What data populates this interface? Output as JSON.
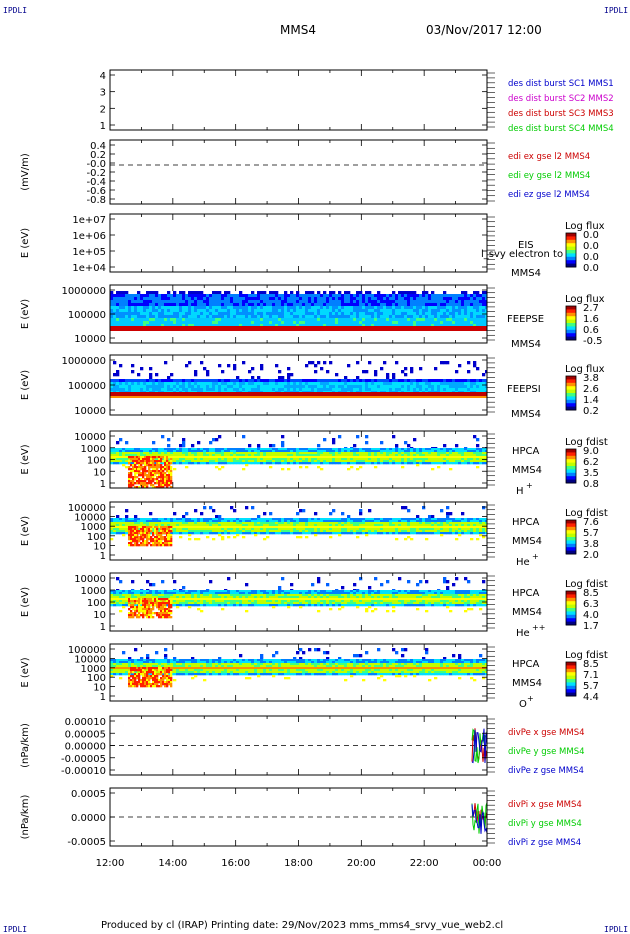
{
  "header": {
    "corner_left_top": "IPDLI",
    "corner_right_top": "IPDLI",
    "corner_left_bottom": "IPDLI",
    "corner_right_bottom": "IPDLI",
    "spacecraft": "MMS4",
    "datetime": "03/Nov/2017 12:00"
  },
  "footer": {
    "text": "Produced by cl (IRAP)   Printing date: 29/Nov/2023   mms_mms4_srvy_vue_web2.cl"
  },
  "colors": {
    "blue": "#0000cc",
    "magenta": "#cc00cc",
    "red": "#cc0000",
    "green": "#00cc00",
    "darkred": "#b00000"
  },
  "chart_data": [
    {
      "type": "line",
      "id": "des-dist",
      "ylabel": "",
      "yticks": [
        "4",
        "3",
        "2",
        "1"
      ],
      "ylim": [
        0.5,
        4.5
      ],
      "legend": [
        {
          "label": "des dist burst SC1 MMS1",
          "color": "#0000cc"
        },
        {
          "label": "des dist burst SC2 MMS2",
          "color": "#cc00cc"
        },
        {
          "label": "des dist burst SC3 MMS3",
          "color": "#cc0000"
        },
        {
          "label": "des dist burst SC4 MMS4",
          "color": "#00cc00"
        }
      ],
      "series": []
    },
    {
      "type": "line",
      "id": "edi",
      "ylabel": "(mV/m)",
      "yticks": [
        "0.4",
        "0.2",
        "-0.0",
        "-0.2",
        "-0.4",
        "-0.6",
        "-0.8"
      ],
      "ylim": [
        -0.9,
        0.5
      ],
      "zero_line": true,
      "legend": [
        {
          "label": "edi ex gse l2 MMS4",
          "color": "#cc0000"
        },
        {
          "label": "edi ey gse l2 MMS4",
          "color": "#00cc00"
        },
        {
          "label": "edi ez gse l2 MMS4",
          "color": "#0000cc"
        }
      ],
      "series": []
    },
    {
      "type": "heatmap",
      "id": "eis",
      "ylabel": "E (eV)",
      "yticks": [
        "1e+07",
        "1e+06",
        "1e+05",
        "1e+04"
      ],
      "yscale": "log",
      "instrument": "EIS",
      "spacecraft": "MMS4",
      "overlay_label": "l_svy electron to",
      "colorbar_title": "Log flux",
      "colorbar_ticks": [
        "0.0",
        "0.0",
        "0.0",
        "0.0"
      ]
    },
    {
      "type": "heatmap",
      "id": "feepse",
      "ylabel": "E (eV)",
      "yticks": [
        "1000000",
        "100000",
        "10000"
      ],
      "yscale": "log",
      "instrument": "FEEPSE",
      "spacecraft": "MMS4",
      "colorbar_title": "Log flux",
      "colorbar_ticks": [
        "2.7",
        "1.6",
        "0.6",
        "-0.5"
      ]
    },
    {
      "type": "heatmap",
      "id": "feepsi",
      "ylabel": "E (eV)",
      "yticks": [
        "1000000",
        "100000",
        "10000"
      ],
      "yscale": "log",
      "instrument": "FEEPSI",
      "spacecraft": "MMS4",
      "colorbar_title": "Log flux",
      "colorbar_ticks": [
        "3.8",
        "2.6",
        "1.4",
        "0.2"
      ]
    },
    {
      "type": "heatmap",
      "id": "hpca-h",
      "ylabel": "E (eV)",
      "yticks": [
        "10000",
        "1000",
        "100",
        "10",
        "1"
      ],
      "yscale": "log",
      "instrument": "HPCA",
      "spacecraft": "MMS4",
      "species": "H",
      "species_sup": "+",
      "colorbar_title": "Log fdist",
      "colorbar_ticks": [
        "9.0",
        "6.2",
        "3.5",
        "0.8"
      ]
    },
    {
      "type": "heatmap",
      "id": "hpca-he",
      "ylabel": "E (eV)",
      "yticks": [
        "100000",
        "10000",
        "1000",
        "100",
        "10",
        "1"
      ],
      "yscale": "log",
      "instrument": "HPCA",
      "spacecraft": "MMS4",
      "species": "He",
      "species_sup": "+",
      "colorbar_title": "Log fdist",
      "colorbar_ticks": [
        "7.6",
        "5.7",
        "3.8",
        "2.0"
      ]
    },
    {
      "type": "heatmap",
      "id": "hpca-hepp",
      "ylabel": "E (eV)",
      "yticks": [
        "10000",
        "1000",
        "100",
        "10",
        "1"
      ],
      "yscale": "log",
      "instrument": "HPCA",
      "spacecraft": "MMS4",
      "species": "He",
      "species_sup": "++",
      "colorbar_title": "Log fdist",
      "colorbar_ticks": [
        "8.5",
        "6.3",
        "4.0",
        "1.7"
      ]
    },
    {
      "type": "heatmap",
      "id": "hpca-o",
      "ylabel": "E (eV)",
      "yticks": [
        "100000",
        "10000",
        "1000",
        "100",
        "10",
        "1"
      ],
      "yscale": "log",
      "instrument": "HPCA",
      "spacecraft": "MMS4",
      "species": "O",
      "species_sup": "+",
      "colorbar_title": "Log fdist",
      "colorbar_ticks": [
        "8.5",
        "7.1",
        "5.7",
        "4.4"
      ]
    },
    {
      "type": "line",
      "id": "divpe",
      "ylabel": "(nPa/km)",
      "yticks": [
        "0.00010",
        "0.00005",
        "0.00000",
        "-0.00005",
        "-0.00010"
      ],
      "ylim": [
        -0.00012,
        0.00012
      ],
      "zero_line": true,
      "legend": [
        {
          "label": "divPe x gse MMS4",
          "color": "#cc0000"
        },
        {
          "label": "divPe y gse MMS4",
          "color": "#00cc00"
        },
        {
          "label": "divPe z gse MMS4",
          "color": "#0000cc"
        }
      ]
    },
    {
      "type": "line",
      "id": "divpi",
      "ylabel": "(nPa/km)",
      "yticks": [
        "0.0005",
        "0.0000",
        "-0.0005"
      ],
      "ylim": [
        -0.00085,
        0.00085
      ],
      "zero_line": true,
      "legend": [
        {
          "label": "divPi x gse MMS4",
          "color": "#cc0000"
        },
        {
          "label": "divPi y gse MMS4",
          "color": "#00cc00"
        },
        {
          "label": "divPi z gse MMS4",
          "color": "#0000cc"
        }
      ]
    }
  ],
  "time_axis": {
    "tick_labels": [
      "12:00",
      "14:00",
      "16:00",
      "18:00",
      "20:00",
      "22:00",
      "00:00"
    ]
  }
}
